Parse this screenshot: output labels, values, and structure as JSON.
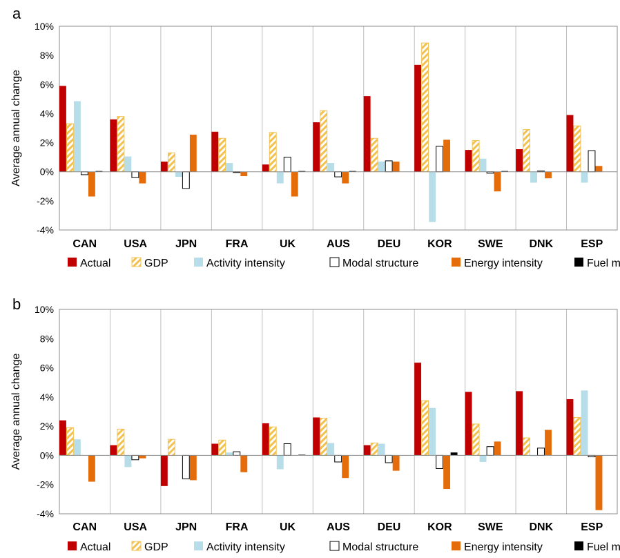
{
  "chart_data": [
    {
      "type": "bar",
      "panel_label": "a",
      "ylabel": "Average annual change",
      "ylim": [
        -4,
        10
      ],
      "yticks": [
        -4,
        -2,
        0,
        2,
        4,
        6,
        8,
        10
      ],
      "ytick_labels": [
        "-4%",
        "-2%",
        "0%",
        "2%",
        "4%",
        "6%",
        "8%",
        "10%"
      ],
      "grid": "vertical separators",
      "legend_position": "bottom",
      "categories": [
        "CAN",
        "USA",
        "JPN",
        "FRA",
        "UK",
        "AUS",
        "DEU",
        "KOR",
        "SWE",
        "DNK",
        "ESP"
      ],
      "series": [
        {
          "name": "Actual",
          "color": "#c00000",
          "style": "solid",
          "values": [
            5.9,
            3.6,
            0.7,
            2.75,
            0.5,
            3.4,
            5.2,
            7.35,
            1.5,
            1.55,
            3.9
          ]
        },
        {
          "name": "GDP",
          "color": "#ffd966",
          "style": "hatched",
          "values": [
            3.3,
            3.8,
            1.3,
            2.3,
            2.7,
            4.2,
            2.3,
            8.85,
            2.15,
            2.9,
            3.15
          ]
        },
        {
          "name": "Activity intensity",
          "color": "#b7dee8",
          "style": "solid",
          "values": [
            4.85,
            1.05,
            -0.35,
            0.6,
            -0.8,
            0.6,
            0.7,
            -3.45,
            0.9,
            -0.75,
            -0.75
          ]
        },
        {
          "name": "Modal structure",
          "color": "#ffffff",
          "style": "outlined",
          "values": [
            -0.2,
            -0.4,
            -1.15,
            -0.05,
            1.0,
            -0.35,
            0.75,
            1.75,
            -0.1,
            0.05,
            1.45
          ]
        },
        {
          "name": "Energy intensity",
          "color": "#e46c0a",
          "style": "solid",
          "values": [
            -1.7,
            -0.8,
            2.55,
            -0.3,
            -1.7,
            -0.8,
            0.7,
            2.2,
            -1.35,
            -0.45,
            0.4
          ]
        },
        {
          "name": "Fuel mix",
          "color": "#000000",
          "style": "solid",
          "values": [
            0.05,
            0.0,
            0.0,
            0.0,
            0.05,
            0.05,
            0.0,
            0.0,
            0.05,
            0.0,
            0.0
          ]
        }
      ]
    },
    {
      "type": "bar",
      "panel_label": "b",
      "ylabel": "Average annual change",
      "ylim": [
        -4,
        10
      ],
      "yticks": [
        -4,
        -2,
        0,
        2,
        4,
        6,
        8,
        10
      ],
      "ytick_labels": [
        "-4%",
        "-2%",
        "0%",
        "2%",
        "4%",
        "6%",
        "8%",
        "10%"
      ],
      "grid": "vertical separators",
      "legend_position": "bottom",
      "categories": [
        "CAN",
        "USA",
        "JPN",
        "FRA",
        "UK",
        "AUS",
        "DEU",
        "KOR",
        "SWE",
        "DNK",
        "ESP"
      ],
      "series": [
        {
          "name": "Actual",
          "color": "#c00000",
          "style": "solid",
          "values": [
            2.4,
            0.7,
            -2.1,
            0.8,
            2.2,
            2.6,
            0.7,
            6.35,
            4.35,
            4.4,
            3.85
          ]
        },
        {
          "name": "GDP",
          "color": "#ffd966",
          "style": "hatched",
          "values": [
            1.9,
            1.8,
            1.1,
            1.05,
            1.95,
            2.55,
            0.85,
            3.75,
            2.15,
            1.2,
            2.6
          ]
        },
        {
          "name": "Activity intensity",
          "color": "#b7dee8",
          "style": "solid",
          "values": [
            1.1,
            -0.8,
            0.0,
            0.2,
            -0.95,
            0.85,
            0.8,
            3.25,
            -0.45,
            -0.05,
            4.45
          ]
        },
        {
          "name": "Modal structure",
          "color": "#ffffff",
          "style": "outlined",
          "values": [
            0.0,
            -0.3,
            -1.6,
            0.25,
            0.8,
            -0.45,
            -0.5,
            -0.9,
            0.6,
            0.5,
            -0.1
          ]
        },
        {
          "name": "Energy intensity",
          "color": "#e46c0a",
          "style": "solid",
          "values": [
            -1.8,
            -0.2,
            -1.7,
            -1.15,
            0.0,
            -1.55,
            -1.05,
            -2.3,
            0.95,
            1.75,
            -3.75
          ]
        },
        {
          "name": "Fuel mix",
          "color": "#000000",
          "style": "solid",
          "values": [
            0.0,
            0.0,
            0.0,
            0.0,
            0.05,
            0.0,
            0.0,
            0.2,
            0.0,
            0.0,
            0.0
          ]
        }
      ]
    }
  ]
}
